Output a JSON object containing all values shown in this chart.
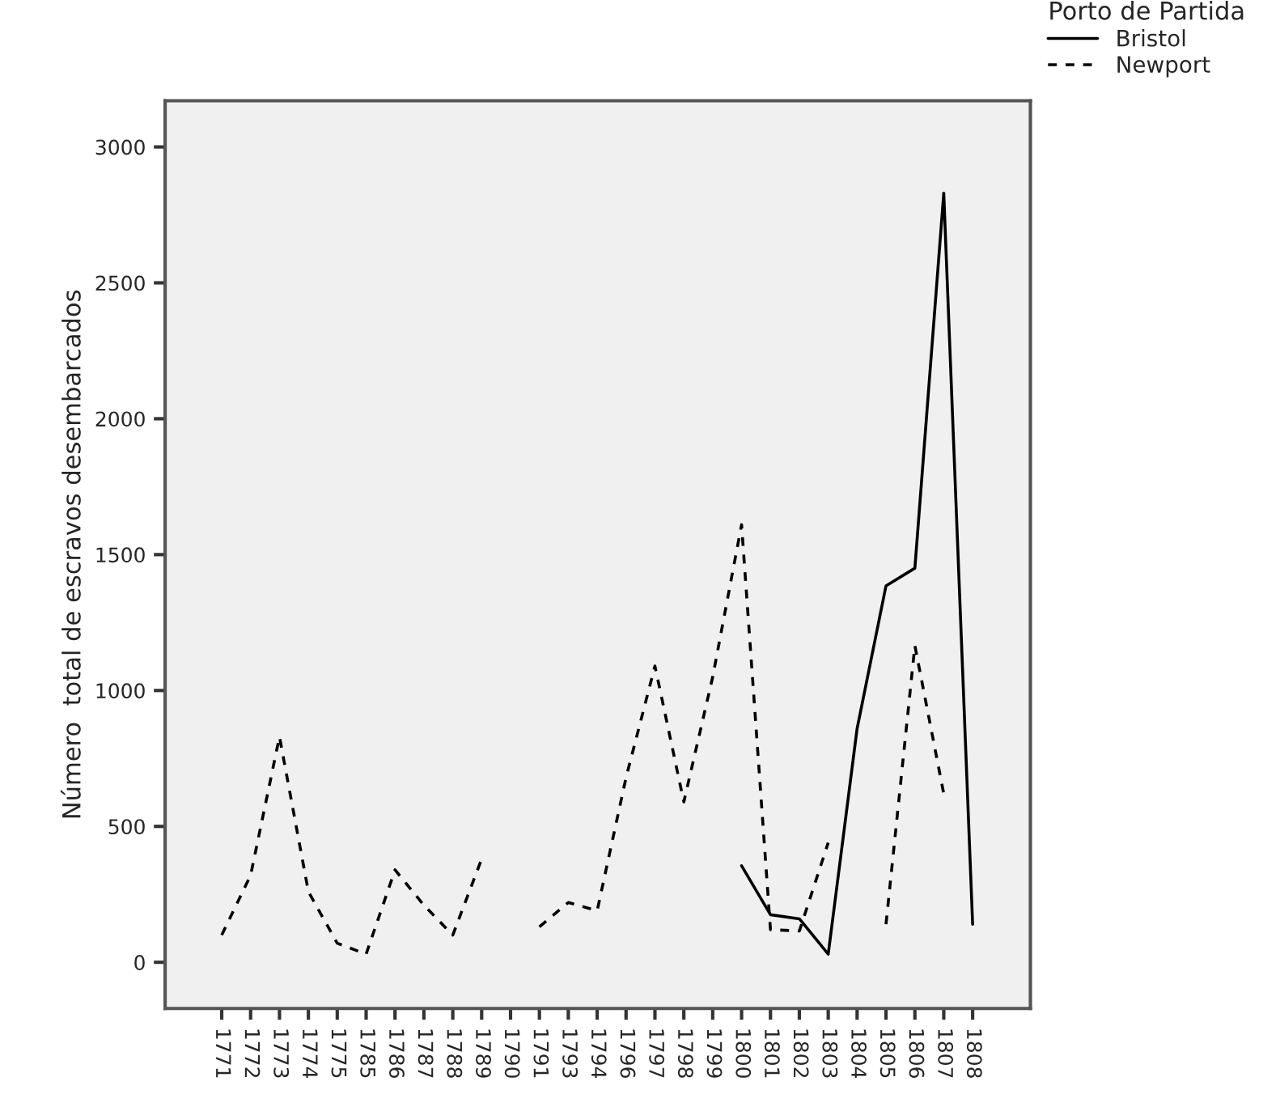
{
  "chart_data": {
    "type": "line",
    "ylabel": "Número  total de escravos desembarcados",
    "legend_title": "Porto de Partida",
    "categories": [
      "1771",
      "1772",
      "1773",
      "1774",
      "1775",
      "1785",
      "1786",
      "1787",
      "1788",
      "1789",
      "1790",
      "1791",
      "1793",
      "1794",
      "1796",
      "1797",
      "1798",
      "1799",
      "1800",
      "1801",
      "1802",
      "1803",
      "1804",
      "1805",
      "1806",
      "1807",
      "1808"
    ],
    "series": [
      {
        "name": "Bristol",
        "color": "#000000",
        "line_style": "solid",
        "values": [
          null,
          null,
          null,
          null,
          null,
          null,
          null,
          null,
          null,
          null,
          null,
          null,
          null,
          null,
          null,
          null,
          null,
          null,
          355,
          175,
          160,
          30,
          860,
          1385,
          1450,
          2830,
          140
        ]
      },
      {
        "name": "Newport",
        "color": "#000000",
        "line_style": "dashed",
        "values": [
          100,
          320,
          830,
          260,
          70,
          30,
          340,
          210,
          100,
          380,
          null,
          130,
          220,
          190,
          680,
          1090,
          590,
          1050,
          1610,
          120,
          115,
          440,
          null,
          140,
          1165,
          620,
          null
        ]
      }
    ],
    "ylim": [
      -170,
      3170
    ],
    "yticks": [
      0,
      500,
      1000,
      1500,
      2000,
      2500,
      3000
    ],
    "grid": false,
    "legend": "top right",
    "marker": "none"
  }
}
